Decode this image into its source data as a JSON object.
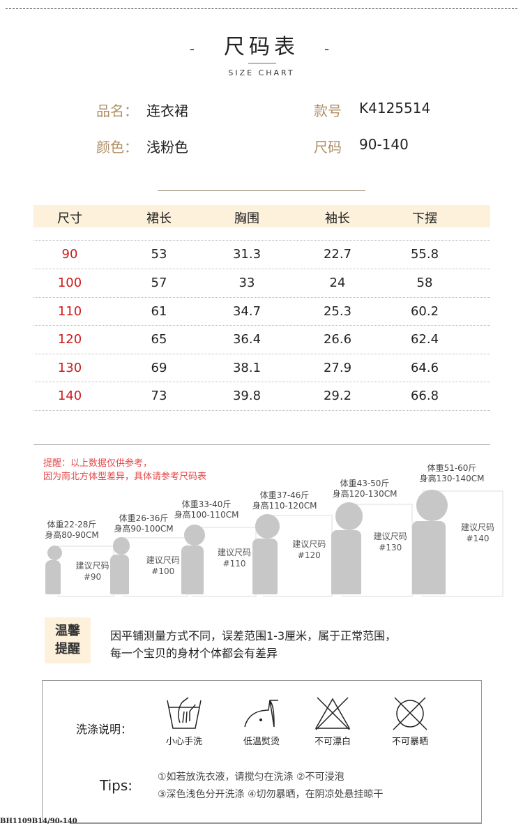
{
  "header": {
    "title": "尺码表",
    "dash": "-",
    "subtitle": "SIZE CHART"
  },
  "info": {
    "name_label": "品名：",
    "name_value": "连衣裙",
    "style_label": "款号",
    "style_value": "K4125514",
    "color_label": "颜色：",
    "color_value": "浅粉色",
    "size_label": "尺码",
    "size_value": "90-140"
  },
  "table": {
    "columns": [
      "尺寸",
      "裙长",
      "胸围",
      "袖长",
      "下摆"
    ],
    "rows": [
      [
        "90",
        "53",
        "31.3",
        "22.7",
        "55.8"
      ],
      [
        "100",
        "57",
        "33",
        "24",
        "58"
      ],
      [
        "110",
        "61",
        "34.7",
        "25.3",
        "60.2"
      ],
      [
        "120",
        "65",
        "36.4",
        "26.6",
        "62.4"
      ],
      [
        "130",
        "69",
        "38.1",
        "27.9",
        "64.6"
      ],
      [
        "140",
        "73",
        "39.8",
        "29.2",
        "66.8"
      ]
    ]
  },
  "reminder": {
    "line1": "提醒：以上数据仅供参考，",
    "line2": "因为南北方体型差异，具体请参考尺码表"
  },
  "kids": [
    {
      "weight": "体重22-28斤",
      "height": "身高80-90CM",
      "suggest": "建议尺码",
      "size": "#90"
    },
    {
      "weight": "体重26-36斤",
      "height": "身高90-100CM",
      "suggest": "建议尺码",
      "size": "#100"
    },
    {
      "weight": "体重33-40斤",
      "height": "身高100-110CM",
      "suggest": "建议尺码",
      "size": "#110"
    },
    {
      "weight": "体重37-46斤",
      "height": "身高110-120CM",
      "suggest": "建议尺码",
      "size": "#120"
    },
    {
      "weight": "体重43-50斤",
      "height": "身高120-130CM",
      "suggest": "建议尺码",
      "size": "#130"
    },
    {
      "weight": "体重51-60斤",
      "height": "身高130-140CM",
      "suggest": "建议尺码",
      "size": "#140"
    }
  ],
  "warm": {
    "label1": "温馨",
    "label2": "提醒",
    "line1": "因平铺测量方式不同，误差范围1-3厘米，属于正常范围，",
    "line2": "每一个宝贝的身材个体都会有差异"
  },
  "wash": {
    "label": "洗涤说明：",
    "icons": [
      {
        "icon": "hand-wash-icon",
        "label": "小心手洗"
      },
      {
        "icon": "low-iron-icon",
        "label": "低温熨烫"
      },
      {
        "icon": "no-bleach-icon",
        "label": "不可漂白"
      },
      {
        "icon": "no-sun-dry-icon",
        "label": "不可暴晒"
      }
    ],
    "tips_label": "Tips:",
    "tip1": "①如若放洗衣液，请搅匀在洗涤 ②不可浸泡",
    "tip2": "③深色浅色分开洗涤 ④切勿暴晒，在阴凉处悬挂晾干"
  },
  "footer": {
    "code": "BH1109B14/90-140"
  },
  "colors": {
    "accent_label": "#b19066",
    "size_red": "#d0191b",
    "header_bg": "#fdf1dc",
    "reminder_red": "#e4484a"
  }
}
